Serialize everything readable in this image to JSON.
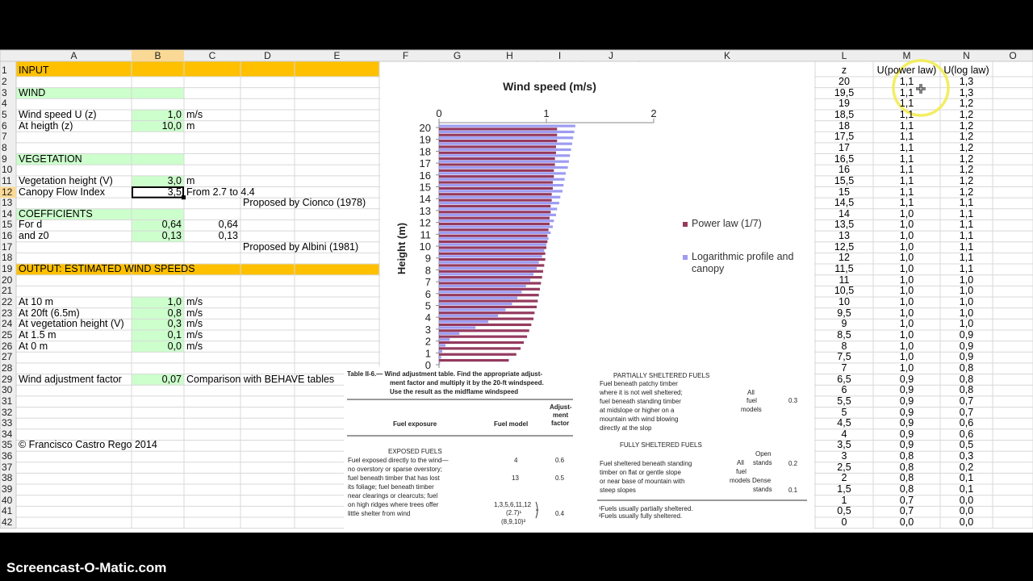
{
  "columns": [
    "A",
    "B",
    "C",
    "D",
    "E",
    "F",
    "G",
    "H",
    "I",
    "J",
    "K",
    "L",
    "M",
    "N",
    "O"
  ],
  "row_numbers": [
    1,
    2,
    3,
    4,
    5,
    6,
    7,
    8,
    9,
    10,
    11,
    12,
    13,
    14,
    15,
    16,
    17,
    18,
    19,
    20,
    21,
    22,
    23,
    24,
    25,
    26,
    27,
    28,
    29,
    30,
    31,
    32,
    33,
    34,
    35,
    36,
    37,
    38,
    39,
    40,
    41,
    42
  ],
  "sheet": {
    "A1": "INPUT",
    "A3": "WIND",
    "A5": "Wind speed U (z)",
    "B5": "1,0",
    "C5": "m/s",
    "A6": "At heigth (z)",
    "B6": "10,0",
    "C6": "m",
    "A9": "VEGETATION",
    "A11": "Vegetation height (V)",
    "B11": "3,0",
    "C11": "m",
    "A12": "Canopy Flow Index",
    "B12": "3,5",
    "C12": "From 2.7 to 4.4",
    "D13": "Proposed by Cionco (1978)",
    "A14": "COEFFICIENTS",
    "A15": "For d",
    "B15": "0,64",
    "C15": "0,64",
    "A16": "and z0",
    "B16": "0,13",
    "C16": "0,13",
    "D17": "Proposed by Albini (1981)",
    "A19": "OUTPUT: ESTIMATED WIND SPEEDS",
    "A22": "At 10 m",
    "B22": "1,0",
    "C22": "m/s",
    "A23": "At 20ft (6.5m)",
    "B23": "0,8",
    "C23": "m/s",
    "A24": "At vegetation height (V)",
    "B24": "0,3",
    "C24": "m/s",
    "A25": "At 1.5 m",
    "B25": "0,1",
    "C25": "m/s",
    "A26": "At 0 m",
    "B26": "0,0",
    "C26": "m/s",
    "A29": "Wind adjustment factor",
    "B29": "0,07",
    "C29": "Comparison with BEHAVE tables",
    "A35": "© Francisco Castro Rego 2014",
    "L1": "z",
    "M1": "U(power law)",
    "N1": "U(log law)",
    "L2": "20",
    "M2": "1,1",
    "N2": "1,3",
    "L3": "19,5",
    "M3": "1,1",
    "N3": "1,3",
    "L4": "19",
    "M4": "1,1",
    "N4": "1,2",
    "L5": "18,5",
    "M5": "1,1",
    "N5": "1,2",
    "L6": "18",
    "M6": "1,1",
    "N6": "1,2",
    "L7": "17,5",
    "M7": "1,1",
    "N7": "1,2",
    "L8": "17",
    "M8": "1,1",
    "N8": "1,2",
    "L9": "16,5",
    "M9": "1,1",
    "N9": "1,2",
    "L10": "16",
    "M10": "1,1",
    "N10": "1,2",
    "L11": "15,5",
    "M11": "1,1",
    "N11": "1,2",
    "L12": "15",
    "M12": "1,1",
    "N12": "1,2",
    "L13": "14,5",
    "M13": "1,1",
    "N13": "1,1",
    "L14": "14",
    "M14": "1,0",
    "N14": "1,1",
    "L15": "13,5",
    "M15": "1,0",
    "N15": "1,1",
    "L16": "13",
    "M16": "1,0",
    "N16": "1,1",
    "L17": "12,5",
    "M17": "1,0",
    "N17": "1,1",
    "L18": "12",
    "M18": "1,0",
    "N18": "1,1",
    "L19": "11,5",
    "M19": "1,0",
    "N19": "1,1",
    "L20": "11",
    "M20": "1,0",
    "N20": "1,0",
    "L21": "10,5",
    "M21": "1,0",
    "N21": "1,0",
    "L22": "10",
    "M22": "1,0",
    "N22": "1,0",
    "L23": "9,5",
    "M23": "1,0",
    "N23": "1,0",
    "L24": "9",
    "M24": "1,0",
    "N24": "1,0",
    "L25": "8,5",
    "M25": "1,0",
    "N25": "0,9",
    "L26": "8",
    "M26": "1,0",
    "N26": "0,9",
    "L27": "7,5",
    "M27": "1,0",
    "N27": "0,9",
    "L28": "7",
    "M28": "1,0",
    "N28": "0,8",
    "L29": "6,5",
    "M29": "0,9",
    "N29": "0,8",
    "L30": "6",
    "M30": "0,9",
    "N30": "0,8",
    "L31": "5,5",
    "M31": "0,9",
    "N31": "0,7",
    "L32": "5",
    "M32": "0,9",
    "N32": "0,7",
    "L33": "4,5",
    "M33": "0,9",
    "N33": "0,6",
    "L34": "4",
    "M34": "0,9",
    "N34": "0,6",
    "L35": "3,5",
    "M35": "0,9",
    "N35": "0,5",
    "L36": "3",
    "M36": "0,8",
    "N36": "0,3",
    "L37": "2,5",
    "M37": "0,8",
    "N37": "0,2",
    "L38": "2",
    "M38": "0,8",
    "N38": "0,1",
    "L39": "1,5",
    "M39": "0,8",
    "N39": "0,1",
    "L40": "1",
    "M40": "0,7",
    "N40": "0,0",
    "L41": "0,5",
    "M41": "0,7",
    "N41": "0,0",
    "L42": "0",
    "M42": "0,0",
    "N42": "0,0"
  },
  "chart_data": {
    "type": "bar",
    "orientation": "horizontal",
    "title": "Wind speed (m/s)",
    "y_label": "Height (m)",
    "categories": [
      "0",
      null,
      "1",
      null,
      "2",
      null,
      "3",
      null,
      "4",
      null,
      "5",
      null,
      "6",
      null,
      "7",
      null,
      "8",
      null,
      "9",
      null,
      "10",
      null,
      "11",
      null,
      "12",
      null,
      "13",
      null,
      "14",
      null,
      "15",
      null,
      "16",
      null,
      "17",
      null,
      "18",
      null,
      "19",
      null,
      "20"
    ],
    "series": [
      {
        "name": "Power law (1/7)",
        "color": "#953a5e",
        "values": [
          0,
          0.65,
          0.72,
          0.76,
          0.79,
          0.82,
          0.84,
          0.86,
          0.88,
          0.89,
          0.91,
          0.92,
          0.93,
          0.94,
          0.95,
          0.96,
          0.97,
          0.98,
          0.99,
          0.99,
          1.0,
          1.01,
          1.01,
          1.02,
          1.03,
          1.03,
          1.04,
          1.04,
          1.05,
          1.05,
          1.06,
          1.06,
          1.07,
          1.07,
          1.08,
          1.08,
          1.09,
          1.09,
          1.1,
          1.1,
          1.1
        ]
      },
      {
        "name": "Logarithmic profile and canopy",
        "color": "#9d9cf2",
        "values": [
          0.01,
          0.02,
          0.03,
          0.06,
          0.1,
          0.19,
          0.34,
          0.46,
          0.55,
          0.62,
          0.68,
          0.73,
          0.77,
          0.81,
          0.85,
          0.88,
          0.91,
          0.93,
          0.96,
          0.98,
          1.0,
          1.02,
          1.04,
          1.06,
          1.07,
          1.09,
          1.1,
          1.12,
          1.13,
          1.15,
          1.16,
          1.17,
          1.18,
          1.2,
          1.21,
          1.22,
          1.23,
          1.24,
          1.25,
          1.26,
          1.27
        ]
      }
    ],
    "xlim": [
      0,
      2
    ],
    "xticks": [
      0,
      1,
      2
    ]
  },
  "embedded_table": {
    "caption": [
      "Table II-6.— Wind adjustment table. Find the appropriate adjust-",
      "ment factor and multiply it by the 20-ft windspeed.",
      "Use the result as the midflame windspeed"
    ],
    "headers": [
      "Fuel exposure",
      "Fuel model",
      "Adjust-",
      "ment",
      "factor"
    ],
    "exposed_title": "EXPOSED FUELS",
    "exposed_lines": [
      "Fuel exposed directly to the wind—",
      "no overstory or sparse overstory;",
      "fuel beneath timber that has lost",
      "its foliage; fuel beneath timber",
      "near clearings or clearcuts; fuel",
      "on high ridges where trees offer",
      "little shelter from wind"
    ],
    "exposed_models": [
      "4",
      "13",
      "1,3,5,6,11,12",
      "(2.7)¹",
      "(8,9,10)²"
    ],
    "exposed_factors": [
      "0.6",
      "0.5",
      "0.4"
    ],
    "partial_title": "PARTIALLY SHELTERED FUELS",
    "partial_lines": [
      "Fuel beneath patchy timber",
      "where it is not well sheltered;",
      "fuel beneath standing timber",
      "at midslope or higher on a",
      "mountain with wind blowing",
      "directly at the slop"
    ],
    "partial_models": [
      "All",
      "fuel",
      "models"
    ],
    "partial_factor": "0.3",
    "full_title": "FULLY SHELTERED FUELS",
    "full_lines": [
      "Fuel sheltered beneath standing",
      "timber on flat or gentle slope",
      "or near base of mountain with",
      "steep slopes"
    ],
    "full_models": [
      "Open",
      "stands",
      "All",
      "fuel",
      "models Dense",
      "stands"
    ],
    "full_factors": [
      "0.2",
      "0.1"
    ],
    "footnotes": [
      "¹Fuels usually partially sheltered.",
      "²Fuels usually fully sheltered."
    ]
  },
  "watermark": "Screencast-O-Matic.com"
}
